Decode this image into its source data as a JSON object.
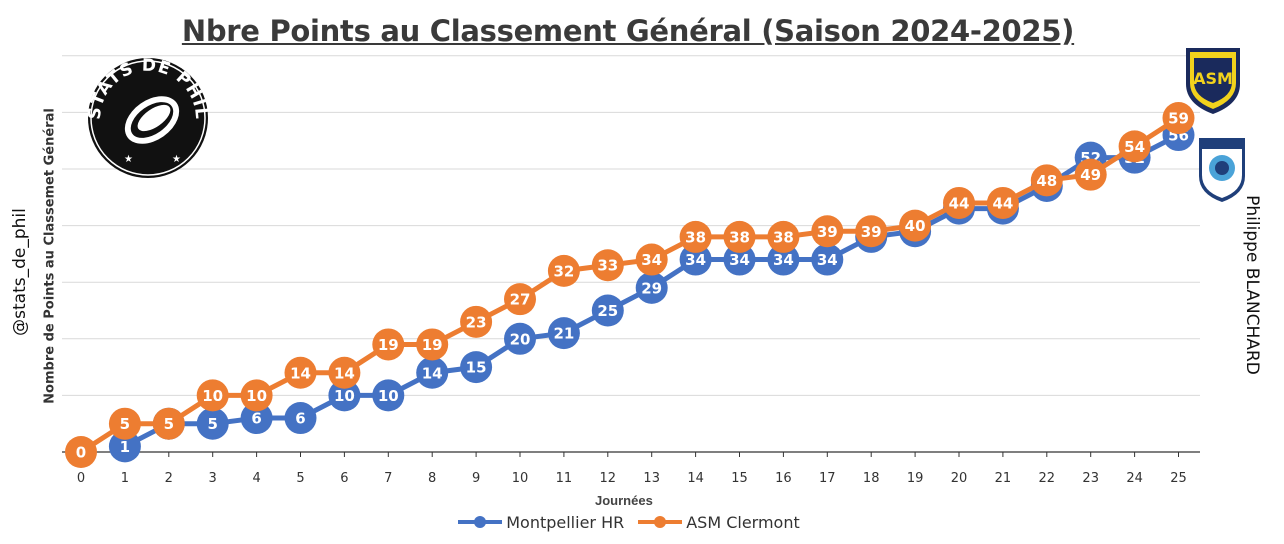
{
  "page": {
    "left_handle": "@stats_de_phil",
    "author": "Philippe BLANCHARD",
    "logo_text": "STATS DE PHIL"
  },
  "chart_data": {
    "type": "line",
    "title": "Nbre Points au Classement Général (Saison 2024-2025)",
    "xlabel": "Journées",
    "ylabel": "Nombre de Points au Classemet Général",
    "x": [
      0,
      1,
      2,
      3,
      4,
      5,
      6,
      7,
      8,
      9,
      10,
      11,
      12,
      13,
      14,
      15,
      16,
      17,
      18,
      19,
      20,
      21,
      22,
      23,
      24,
      25
    ],
    "ylim": [
      0,
      70
    ],
    "grid": true,
    "legend_position": "bottom",
    "series": [
      {
        "name": "Montpellier HR",
        "color": "#4472C4",
        "x": [
          1,
          2,
          3,
          4,
          5,
          6,
          7,
          8,
          9,
          10,
          11,
          12,
          13,
          14,
          15,
          16,
          17,
          18,
          19,
          20,
          21,
          22,
          23,
          24,
          25
        ],
        "values": [
          1,
          5,
          5,
          6,
          6,
          10,
          10,
          14,
          15,
          20,
          21,
          25,
          29,
          34,
          34,
          34,
          34,
          38,
          39,
          43,
          43,
          47,
          52,
          52,
          56
        ]
      },
      {
        "name": "ASM Clermont",
        "color": "#ED7D31",
        "x": [
          0,
          1,
          2,
          3,
          4,
          5,
          6,
          7,
          8,
          9,
          10,
          11,
          12,
          13,
          14,
          15,
          16,
          17,
          18,
          19,
          20,
          21,
          22,
          23,
          24,
          25
        ],
        "values": [
          0,
          5,
          5,
          10,
          10,
          14,
          14,
          19,
          19,
          23,
          27,
          32,
          33,
          34,
          38,
          38,
          38,
          39,
          39,
          40,
          44,
          44,
          48,
          49,
          54,
          59
        ]
      }
    ]
  }
}
